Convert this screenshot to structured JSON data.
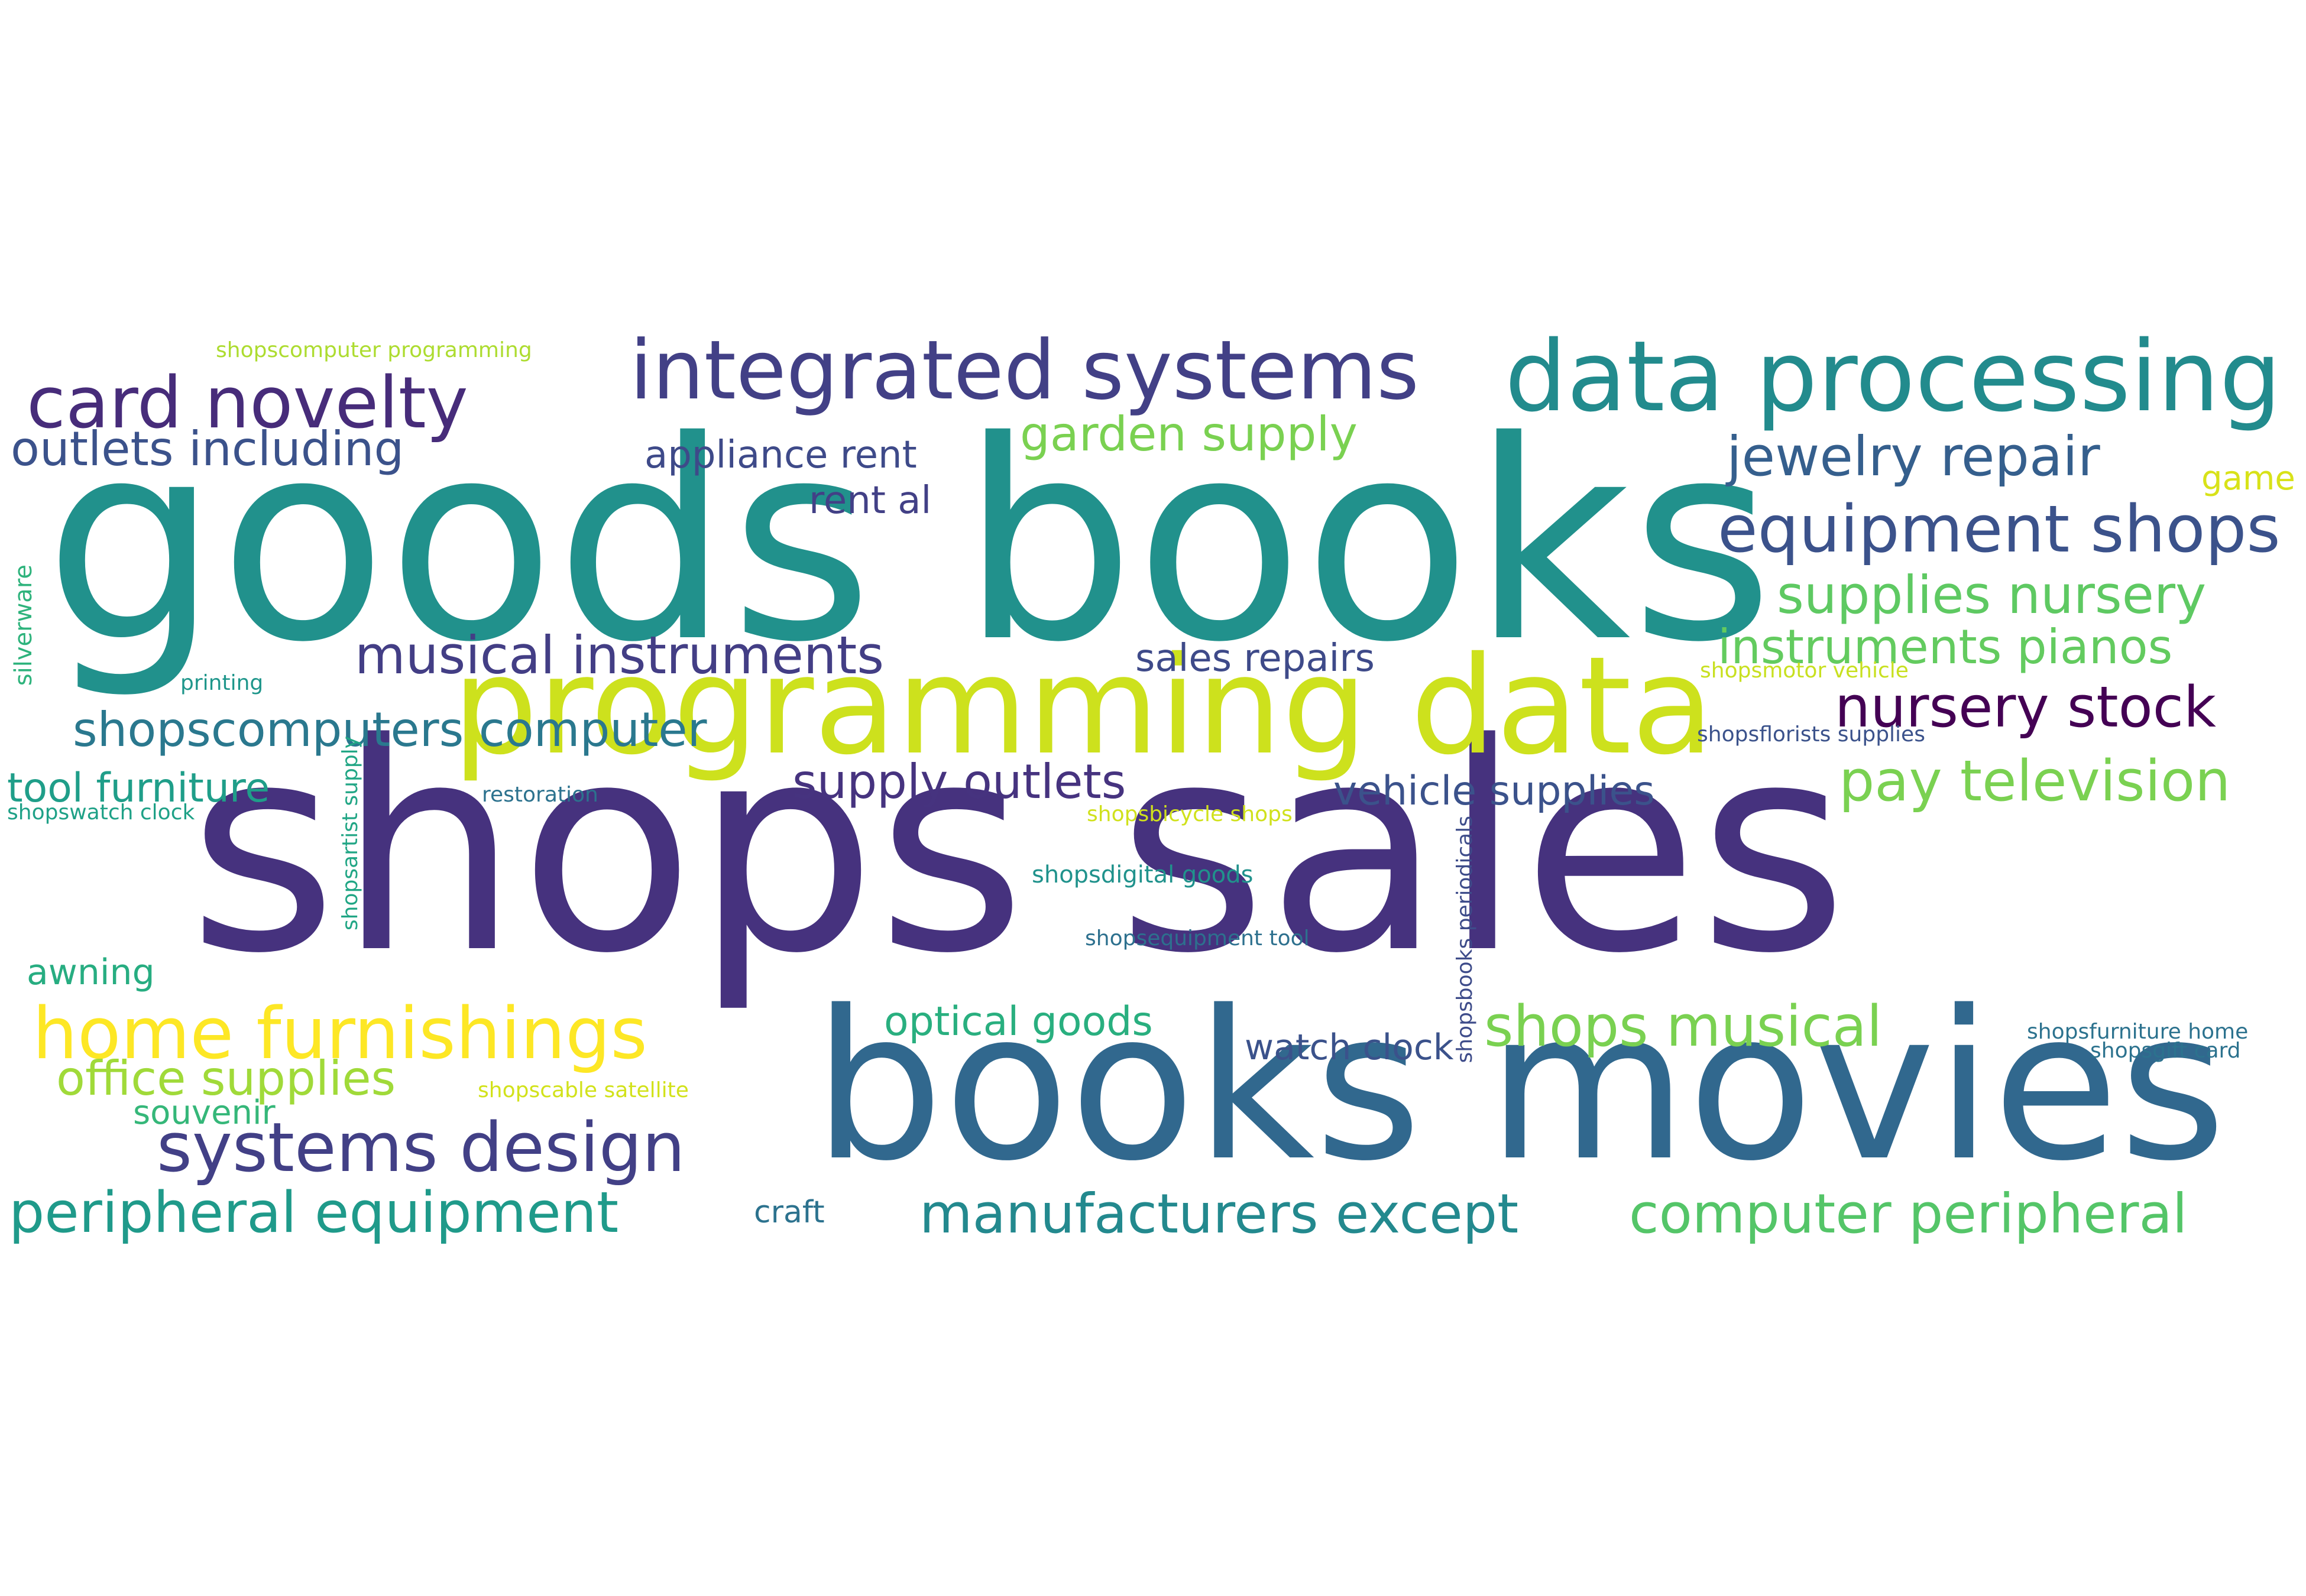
{
  "words": [
    {
      "id": "goods-books",
      "text": "goods books",
      "color": "#21918c"
    },
    {
      "id": "shops-sales",
      "text": "shops sales",
      "color": "#46327e"
    },
    {
      "id": "books-movies",
      "text": "books movies",
      "color": "#31688e"
    },
    {
      "id": "programming-data",
      "text": "programming data",
      "color": "#cde11d"
    },
    {
      "id": "data-processing",
      "text": "data processing",
      "color": "#228b8d"
    },
    {
      "id": "integrated-systems",
      "text": "integrated systems",
      "color": "#424086"
    },
    {
      "id": "card-novelty",
      "text": "card novelty",
      "color": "#472c7a"
    },
    {
      "id": "outlets-including",
      "text": "outlets including",
      "color": "#3b528b"
    },
    {
      "id": "appliance-rent",
      "text": "appliance rent",
      "color": "#3e4a89"
    },
    {
      "id": "garden-supply",
      "text": "garden supply",
      "color": "#7ad151"
    },
    {
      "id": "jewelry-repair",
      "text": "jewelry repair",
      "color": "#355f8d"
    },
    {
      "id": "game",
      "text": "game",
      "color": "#d8e219"
    },
    {
      "id": "rent-al",
      "text": "rent al",
      "color": "#424086"
    },
    {
      "id": "equipment-shops",
      "text": "equipment shops",
      "color": "#3b528b"
    },
    {
      "id": "supplies-nursery",
      "text": "supplies nursery",
      "color": "#5ec962"
    },
    {
      "id": "instruments-pianos",
      "text": "instruments pianos",
      "color": "#63cb5f"
    },
    {
      "id": "musical-instruments",
      "text": "musical instruments",
      "color": "#433e85"
    },
    {
      "id": "sales-repairs",
      "text": "sales repairs",
      "color": "#3e4a89"
    },
    {
      "id": "nursery-stock",
      "text": "nursery stock",
      "color": "#440154"
    },
    {
      "id": "printing",
      "text": "printing",
      "color": "#1f968b"
    },
    {
      "id": "shopsmotor-vehicle",
      "text": "shopsmotor vehicle",
      "color": "#c8e020"
    },
    {
      "id": "shopscomputers-computer",
      "text": "shopscomputers computer",
      "color": "#2a788e"
    },
    {
      "id": "shopsflorists-supplies",
      "text": "shopsflorists supplies",
      "color": "#3b528b"
    },
    {
      "id": "pay-television",
      "text": "pay television",
      "color": "#7ad151"
    },
    {
      "id": "tool-furniture",
      "text": "tool furniture",
      "color": "#1f9e89"
    },
    {
      "id": "supply-outlets",
      "text": "supply outlets",
      "color": "#46337f"
    },
    {
      "id": "vehicle-supplies",
      "text": "vehicle supplies",
      "color": "#3b528b"
    },
    {
      "id": "shopswatch-clock",
      "text": "shopswatch clock",
      "color": "#1fa187"
    },
    {
      "id": "restoration",
      "text": "restoration",
      "color": "#2c728e"
    },
    {
      "id": "shopsbicycle-shops",
      "text": "shopsbicycle shops",
      "color": "#d0e11c"
    },
    {
      "id": "shopsdigital-goods",
      "text": "shopsdigital goods",
      "color": "#20928c"
    },
    {
      "id": "shopsequipment-tool",
      "text": "shopsequipment tool",
      "color": "#2d708e"
    },
    {
      "id": "awning",
      "text": "awning",
      "color": "#27ad81"
    },
    {
      "id": "home-furnishings",
      "text": "home furnishings",
      "color": "#fde725"
    },
    {
      "id": "optical-goods",
      "text": "optical goods",
      "color": "#29af7f"
    },
    {
      "id": "shops-musical",
      "text": "shops musical",
      "color": "#7ad151"
    },
    {
      "id": "watch-clock",
      "text": "watch clock",
      "color": "#3b528b"
    },
    {
      "id": "office-supplies",
      "text": "office supplies",
      "color": "#a0da39"
    },
    {
      "id": "souvenir",
      "text": "souvenir",
      "color": "#35b779"
    },
    {
      "id": "shopscable-satellite",
      "text": "shopscable satellite",
      "color": "#d2e21b"
    },
    {
      "id": "shopsfurniture-home",
      "text": "shopsfurniture home",
      "color": "#2c728e"
    },
    {
      "id": "shopsgift-card",
      "text": "shopsgift card",
      "color": "#2c728e"
    },
    {
      "id": "systems-design",
      "text": "systems design",
      "color": "#424086"
    },
    {
      "id": "peripheral-equipment",
      "text": "peripheral equipment",
      "color": "#1f9a8a"
    },
    {
      "id": "craft",
      "text": "craft",
      "color": "#2c728e"
    },
    {
      "id": "manufacturers-except",
      "text": "manufacturers except",
      "color": "#23898e"
    },
    {
      "id": "computer-peripheral",
      "text": "computer peripheral",
      "color": "#54c568"
    },
    {
      "id": "shopscomputer-programming",
      "text": "shopscomputer programming",
      "color": "#addc30"
    },
    {
      "id": "silverware",
      "text": "silverware",
      "color": "#2eb37c"
    },
    {
      "id": "shopsartist-supply",
      "text": "shopsartist supply",
      "color": "#21a685"
    },
    {
      "id": "shopsbooks-periodicals",
      "text": "shopsbooks periodicals",
      "color": "#3e4c8a"
    }
  ]
}
